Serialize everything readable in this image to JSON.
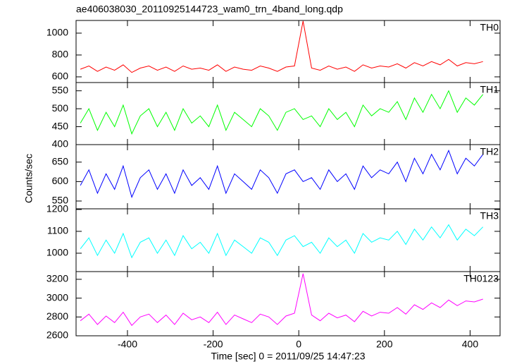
{
  "chart_data": {
    "type": "line",
    "title": "ae406038030_20110925144723_wam0_trn_4band_long.qdp",
    "xlabel": "Time [sec] 0 = 2011/09/25 14:47:23",
    "ylabel": "Counts/sec",
    "xlim": [
      -520,
      470
    ],
    "xticks": [
      -400,
      -200,
      0,
      200,
      400
    ],
    "x": [
      -510,
      -490,
      -470,
      -450,
      -430,
      -410,
      -390,
      -370,
      -350,
      -330,
      -310,
      -290,
      -270,
      -250,
      -230,
      -210,
      -190,
      -170,
      -150,
      -130,
      -110,
      -90,
      -70,
      -50,
      -30,
      -10,
      10,
      30,
      50,
      70,
      90,
      110,
      130,
      150,
      170,
      190,
      210,
      230,
      250,
      270,
      290,
      310,
      330,
      350,
      370,
      390,
      410,
      430
    ],
    "series": [
      {
        "name": "TH0",
        "color": "#ff0000",
        "ylim": [
          548,
          1116
        ],
        "yticks": [
          600,
          800,
          1000
        ],
        "values": [
          670,
          700,
          650,
          690,
          660,
          710,
          640,
          680,
          700,
          660,
          690,
          650,
          700,
          670,
          680,
          660,
          710,
          650,
          690,
          670,
          660,
          700,
          680,
          650,
          690,
          700,
          1110,
          680,
          660,
          700,
          670,
          690,
          650,
          710,
          680,
          700,
          690,
          720,
          680,
          730,
          700,
          740,
          710,
          760,
          700,
          730,
          720,
          740
        ]
      },
      {
        "name": "TH1",
        "color": "#00ff00",
        "ylim": [
          400,
          573
        ],
        "yticks": [
          400,
          450,
          500,
          550
        ],
        "values": [
          460,
          500,
          440,
          490,
          450,
          510,
          430,
          480,
          500,
          450,
          490,
          440,
          500,
          460,
          480,
          450,
          510,
          440,
          490,
          470,
          450,
          500,
          480,
          440,
          490,
          500,
          470,
          480,
          450,
          500,
          470,
          490,
          450,
          510,
          480,
          500,
          490,
          520,
          470,
          530,
          490,
          540,
          500,
          550,
          490,
          530,
          510,
          540
        ]
      },
      {
        "name": "TH2",
        "color": "#0000ff",
        "ylim": [
          530,
          695
        ],
        "yticks": [
          550,
          600,
          650
        ],
        "values": [
          590,
          630,
          570,
          620,
          580,
          640,
          560,
          610,
          630,
          580,
          620,
          570,
          630,
          590,
          610,
          580,
          640,
          570,
          620,
          600,
          580,
          630,
          610,
          570,
          620,
          630,
          600,
          610,
          580,
          630,
          600,
          620,
          580,
          640,
          610,
          630,
          620,
          650,
          600,
          660,
          620,
          670,
          630,
          680,
          620,
          660,
          640,
          670
        ]
      },
      {
        "name": "TH3",
        "color": "#00ffff",
        "ylim": [
          916,
          1203
        ],
        "yticks": [
          1000,
          1100,
          1200
        ],
        "values": [
          1020,
          1070,
          990,
          1060,
          1000,
          1090,
          980,
          1050,
          1070,
          1000,
          1060,
          990,
          1080,
          1020,
          1050,
          1000,
          1090,
          990,
          1060,
          1030,
          1000,
          1070,
          1050,
          990,
          1060,
          1080,
          1030,
          1050,
          1000,
          1070,
          1030,
          1060,
          1000,
          1090,
          1050,
          1070,
          1060,
          1100,
          1040,
          1110,
          1060,
          1120,
          1070,
          1130,
          1060,
          1110,
          1080,
          1120
        ]
      },
      {
        "name": "TH0123",
        "color": "#ff00ff",
        "ylim": [
          2600,
          3282
        ],
        "yticks": [
          2600,
          2800,
          3000,
          3200
        ],
        "values": [
          2760,
          2830,
          2720,
          2810,
          2740,
          2850,
          2710,
          2800,
          2830,
          2740,
          2820,
          2720,
          2840,
          2770,
          2800,
          2740,
          2850,
          2720,
          2820,
          2780,
          2740,
          2830,
          2800,
          2720,
          2810,
          2840,
          3260,
          2820,
          2760,
          2840,
          2790,
          2820,
          2750,
          2860,
          2810,
          2850,
          2840,
          2900,
          2830,
          2930,
          2880,
          2950,
          2900,
          2980,
          2920,
          2970,
          2960,
          2990
        ]
      }
    ]
  }
}
